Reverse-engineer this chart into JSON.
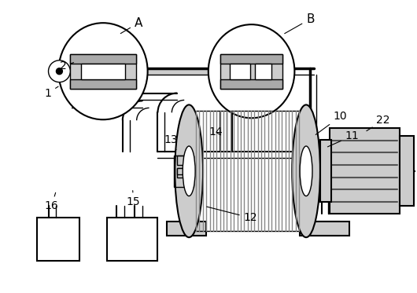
{
  "bg_color": "#ffffff",
  "line_color": "#000000",
  "gray_color": "#888888",
  "dark_gray": "#555555",
  "light_gray": "#cccccc",
  "mid_gray": "#aaaaaa"
}
